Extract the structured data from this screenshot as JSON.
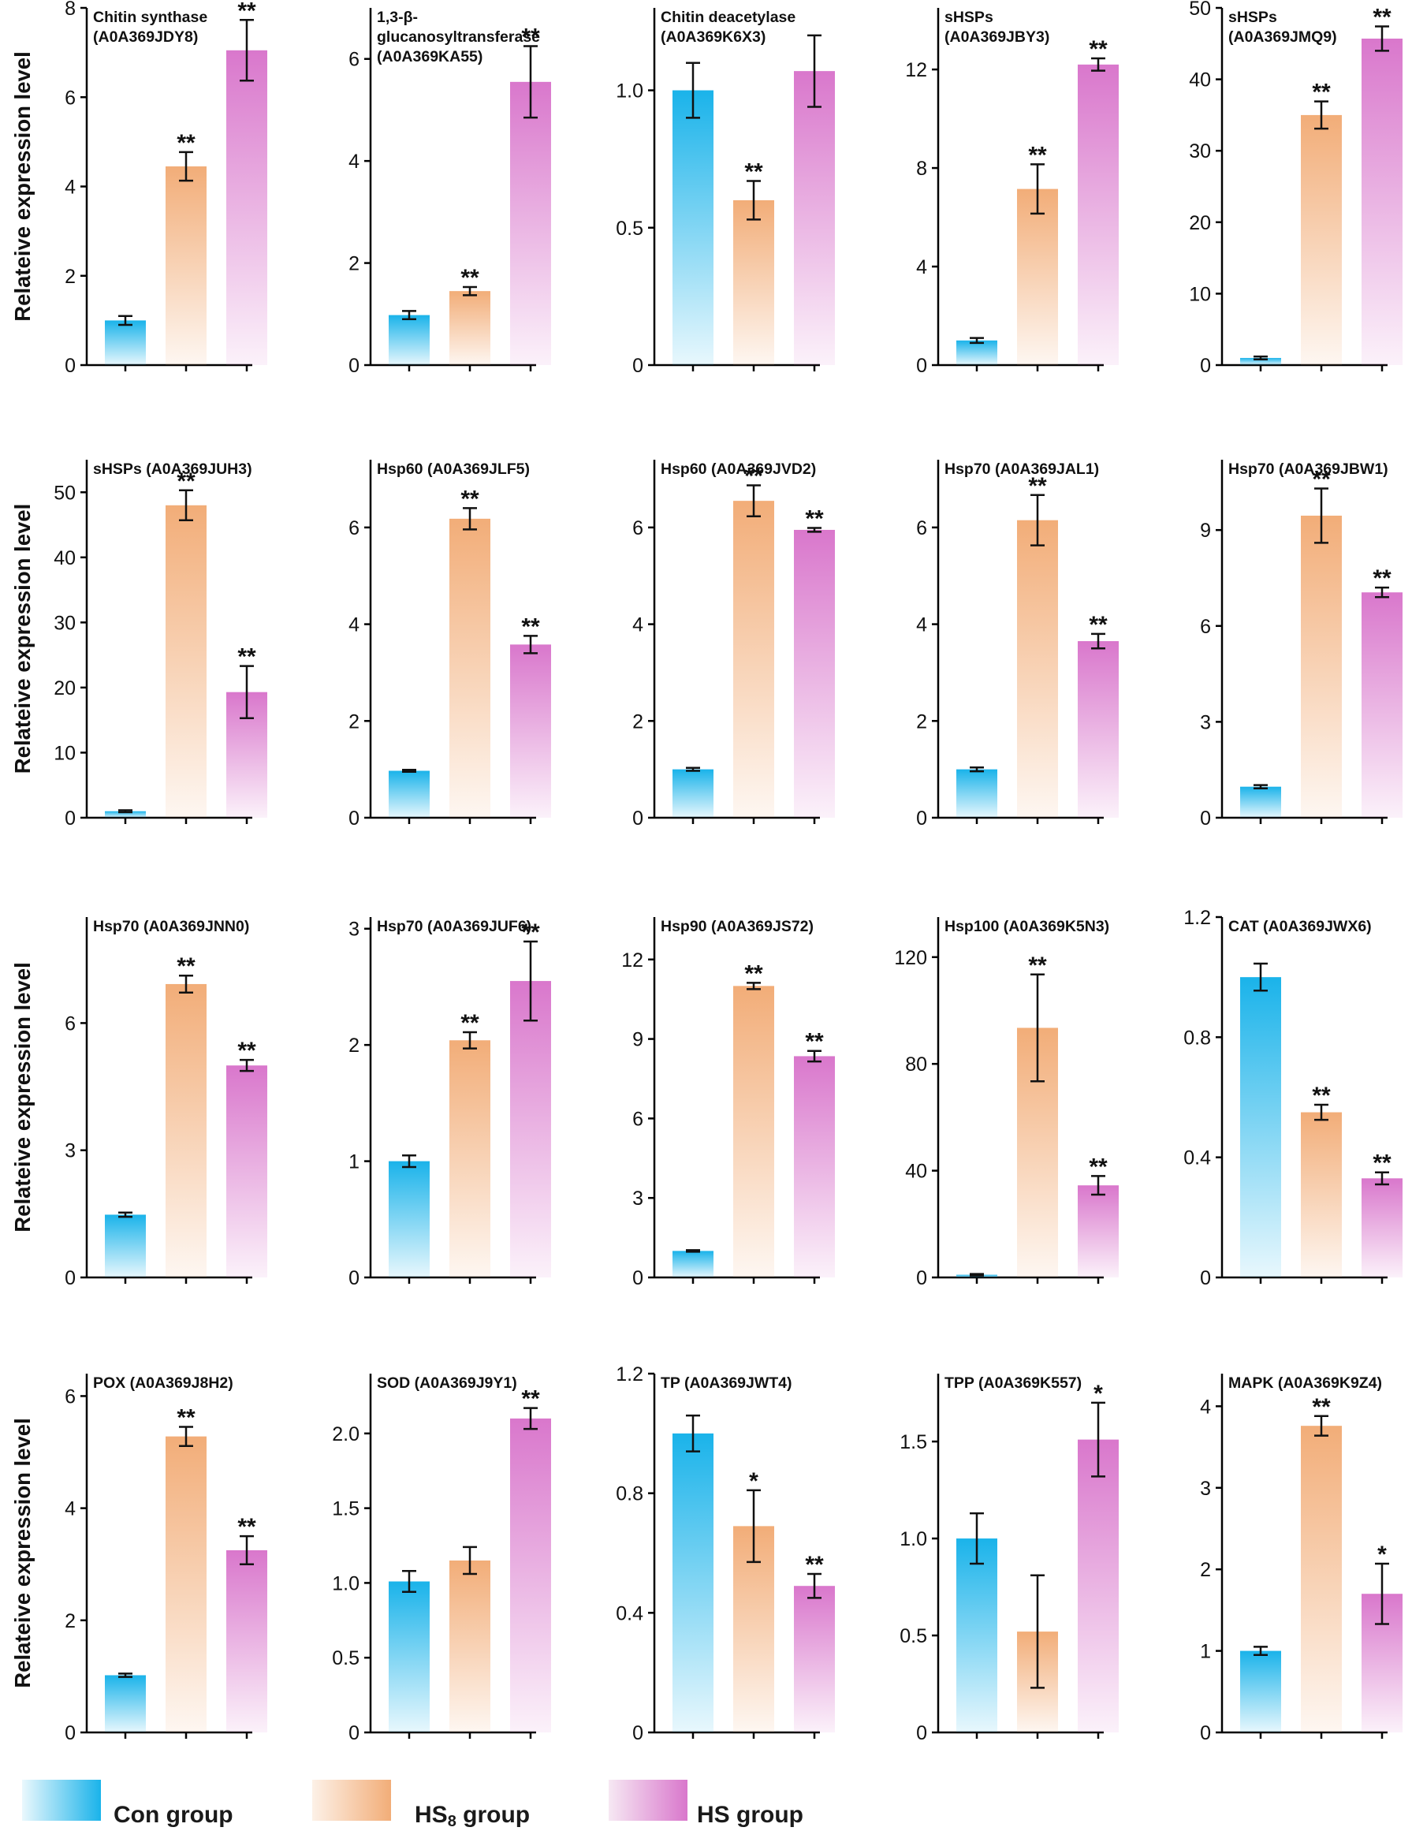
{
  "figure": {
    "ylabel": "Relateive expression level",
    "colors": {
      "con": "#1ab3ea",
      "hs8": "#f2ad78",
      "hs": "#d977cc",
      "axis": "#000000"
    }
  },
  "legend": {
    "con": "Con group",
    "hs8_main": "HS",
    "hs8_sub": "8",
    "hs8_rest": " group",
    "hs": "HS group"
  },
  "chart_data": [
    {
      "type": "bar",
      "title": [
        "Chitin synthase",
        "(A0A369JDY8)"
      ],
      "ylim": [
        0,
        8
      ],
      "yticks": [
        "0",
        "2",
        "4",
        "6",
        "8"
      ],
      "categories": [
        "Con group",
        "HS8 group",
        "HS group"
      ],
      "values": [
        1.0,
        4.45,
        7.05
      ],
      "errors": [
        0.1,
        0.32,
        0.68
      ],
      "significance": [
        "",
        "**",
        "**"
      ]
    },
    {
      "type": "bar",
      "title": [
        "1,3-β-",
        "glucanosyltransferase",
        "(A0A369KA55)"
      ],
      "ylim": [
        0,
        7
      ],
      "yticks": [
        "0",
        "2",
        "4",
        "6"
      ],
      "categories": [
        "Con group",
        "HS8 group",
        "HS group"
      ],
      "values": [
        0.98,
        1.45,
        5.55
      ],
      "errors": [
        0.08,
        0.08,
        0.7
      ],
      "significance": [
        "",
        "**",
        "**"
      ]
    },
    {
      "type": "bar",
      "title": [
        "Chitin deacetylase",
        "(A0A369K6X3)"
      ],
      "ylim": [
        0,
        1.3
      ],
      "yticks": [
        "0",
        "0.5",
        "1.0"
      ],
      "categories": [
        "Con group",
        "HS8 group",
        "HS group"
      ],
      "values": [
        1.0,
        0.6,
        1.07
      ],
      "errors": [
        0.1,
        0.07,
        0.13
      ],
      "significance": [
        "",
        "**",
        ""
      ]
    },
    {
      "type": "bar",
      "title": [
        "sHSPs",
        "(A0A369JBY3)"
      ],
      "ylim": [
        0,
        14.5
      ],
      "yticks": [
        "0",
        "4",
        "8",
        "12"
      ],
      "categories": [
        "Con group",
        "HS8 group",
        "HS group"
      ],
      "values": [
        1.0,
        7.15,
        12.2
      ],
      "errors": [
        0.1,
        1.0,
        0.25
      ],
      "significance": [
        "",
        "**",
        "**"
      ]
    },
    {
      "type": "bar",
      "title": [
        "sHSPs",
        "(A0A369JMQ9)"
      ],
      "ylim": [
        0,
        50
      ],
      "yticks": [
        "0",
        "10",
        "20",
        "30",
        "40",
        "50"
      ],
      "categories": [
        "Con group",
        "HS8 group",
        "HS group"
      ],
      "values": [
        1.0,
        35.0,
        45.7
      ],
      "errors": [
        0.2,
        1.9,
        1.7
      ],
      "significance": [
        "",
        "**",
        "**"
      ]
    },
    {
      "type": "bar",
      "title": [
        "sHSPs (A0A369JUH3)"
      ],
      "ylim": [
        0,
        55
      ],
      "yticks": [
        "0",
        "10",
        "20",
        "30",
        "40",
        "50"
      ],
      "categories": [
        "Con group",
        "HS8 group",
        "HS group"
      ],
      "values": [
        1.0,
        48.0,
        19.3
      ],
      "errors": [
        0.15,
        2.3,
        4.0
      ],
      "significance": [
        "",
        "**",
        "**"
      ]
    },
    {
      "type": "bar",
      "title": [
        "Hsp60 (A0A369JLF5)"
      ],
      "ylim": [
        0,
        7.4
      ],
      "yticks": [
        "0",
        "2",
        "4",
        "6"
      ],
      "categories": [
        "Con group",
        "HS8 group",
        "HS group"
      ],
      "values": [
        0.97,
        6.18,
        3.58
      ],
      "errors": [
        0.02,
        0.22,
        0.18
      ],
      "significance": [
        "",
        "**",
        "**"
      ]
    },
    {
      "type": "bar",
      "title": [
        "Hsp60 (A0A369JVD2)"
      ],
      "ylim": [
        0,
        7.4
      ],
      "yticks": [
        "0",
        "2",
        "4",
        "6"
      ],
      "categories": [
        "Con group",
        "HS8 group",
        "HS group"
      ],
      "values": [
        1.0,
        6.55,
        5.95
      ],
      "errors": [
        0.03,
        0.32,
        0.04
      ],
      "significance": [
        "",
        "**",
        "**"
      ]
    },
    {
      "type": "bar",
      "title": [
        "Hsp70 (A0A369JAL1)"
      ],
      "ylim": [
        0,
        7.4
      ],
      "yticks": [
        "0",
        "2",
        "4",
        "6"
      ],
      "categories": [
        "Con group",
        "HS8 group",
        "HS group"
      ],
      "values": [
        1.0,
        6.15,
        3.65
      ],
      "errors": [
        0.04,
        0.52,
        0.15
      ],
      "significance": [
        "",
        "**",
        "**"
      ]
    },
    {
      "type": "bar",
      "title": [
        "Hsp70 (A0A369JBW1)"
      ],
      "ylim": [
        0,
        11.2
      ],
      "yticks": [
        "0",
        "3",
        "6",
        "9"
      ],
      "categories": [
        "Con group",
        "HS8 group",
        "HS group"
      ],
      "values": [
        0.97,
        9.45,
        7.05
      ],
      "errors": [
        0.05,
        0.85,
        0.15
      ],
      "significance": [
        "",
        "**",
        "**"
      ]
    },
    {
      "type": "bar",
      "title": [
        "Hsp70 (A0A369JNN0)"
      ],
      "ylim": [
        0,
        8.5
      ],
      "yticks": [
        "0",
        "3",
        "6"
      ],
      "categories": [
        "Con group",
        "HS8 group",
        "HS group"
      ],
      "values": [
        1.48,
        6.92,
        5.0
      ],
      "errors": [
        0.05,
        0.2,
        0.13
      ],
      "significance": [
        "",
        "**",
        "**"
      ]
    },
    {
      "type": "bar",
      "title": [
        "Hsp70 (A0A369JUF6)"
      ],
      "ylim": [
        0,
        3.1
      ],
      "yticks": [
        "0",
        "1",
        "2",
        "3"
      ],
      "categories": [
        "Con group",
        "HS8 group",
        "HS group"
      ],
      "values": [
        1.0,
        2.04,
        2.55
      ],
      "errors": [
        0.05,
        0.07,
        0.34
      ],
      "significance": [
        "",
        "**",
        "**"
      ]
    },
    {
      "type": "bar",
      "title": [
        "Hsp90 (A0A369JS72)"
      ],
      "ylim": [
        0,
        13.6
      ],
      "yticks": [
        "0",
        "3",
        "6",
        "9",
        "12"
      ],
      "categories": [
        "Con group",
        "HS8 group",
        "HS group"
      ],
      "values": [
        1.0,
        11.0,
        8.35
      ],
      "errors": [
        0.03,
        0.12,
        0.2
      ],
      "significance": [
        "",
        "**",
        "**"
      ]
    },
    {
      "type": "bar",
      "title": [
        "Hsp100 (A0A369K5N3)"
      ],
      "ylim": [
        0,
        135
      ],
      "yticks": [
        "0",
        "40",
        "80",
        "120"
      ],
      "categories": [
        "Con group",
        "HS8 group",
        "HS group"
      ],
      "values": [
        1.0,
        93.5,
        34.5
      ],
      "errors": [
        0.3,
        20.0,
        3.5
      ],
      "significance": [
        "",
        "**",
        "**"
      ]
    },
    {
      "type": "bar",
      "title": [
        "CAT (A0A369JWX6)"
      ],
      "ylim": [
        0,
        1.2
      ],
      "yticks": [
        "0",
        "0.4",
        "0.8",
        "1.2"
      ],
      "categories": [
        "Con group",
        "HS8 group",
        "HS group"
      ],
      "values": [
        1.0,
        0.55,
        0.33
      ],
      "errors": [
        0.045,
        0.025,
        0.02
      ],
      "significance": [
        "",
        "**",
        "**"
      ]
    },
    {
      "type": "bar",
      "title": [
        "POX (A0A369J8H2)"
      ],
      "ylim": [
        0,
        6.4
      ],
      "yticks": [
        "0",
        "2",
        "4",
        "6"
      ],
      "categories": [
        "Con group",
        "HS8 group",
        "HS group"
      ],
      "values": [
        1.02,
        5.28,
        3.25
      ],
      "errors": [
        0.03,
        0.17,
        0.25
      ],
      "significance": [
        "",
        "**",
        "**"
      ]
    },
    {
      "type": "bar",
      "title": [
        "SOD (A0A369J9Y1)"
      ],
      "ylim": [
        0,
        2.4
      ],
      "yticks": [
        "0",
        "0.5",
        "1.0",
        "1.5",
        "2.0"
      ],
      "categories": [
        "Con group",
        "HS8 group",
        "HS group"
      ],
      "values": [
        1.01,
        1.15,
        2.1
      ],
      "errors": [
        0.07,
        0.09,
        0.07
      ],
      "significance": [
        "",
        "",
        "**"
      ]
    },
    {
      "type": "bar",
      "title": [
        "TP (A0A369JWT4)"
      ],
      "ylim": [
        0,
        1.2
      ],
      "yticks": [
        "0",
        "0.4",
        "0.8",
        "1.2"
      ],
      "categories": [
        "Con group",
        "HS8 group",
        "HS group"
      ],
      "values": [
        1.0,
        0.69,
        0.49
      ],
      "errors": [
        0.06,
        0.12,
        0.04
      ],
      "significance": [
        "",
        "*",
        "**"
      ]
    },
    {
      "type": "bar",
      "title": [
        "TPP (A0A369K557)"
      ],
      "ylim": [
        0,
        1.85
      ],
      "yticks": [
        "0",
        "0.5",
        "1.0",
        "1.5"
      ],
      "categories": [
        "Con group",
        "HS8 group",
        "HS group"
      ],
      "values": [
        1.0,
        0.52,
        1.51
      ],
      "errors": [
        0.13,
        0.29,
        0.19
      ],
      "significance": [
        "",
        "",
        "*"
      ]
    },
    {
      "type": "bar",
      "title": [
        "MAPK (A0A369K9Z4)"
      ],
      "ylim": [
        0,
        4.4
      ],
      "yticks": [
        "0",
        "1",
        "2",
        "3",
        "4"
      ],
      "categories": [
        "Con group",
        "HS8 group",
        "HS group"
      ],
      "values": [
        1.0,
        3.76,
        1.7
      ],
      "errors": [
        0.05,
        0.12,
        0.37
      ],
      "significance": [
        "",
        "**",
        "*"
      ]
    }
  ]
}
